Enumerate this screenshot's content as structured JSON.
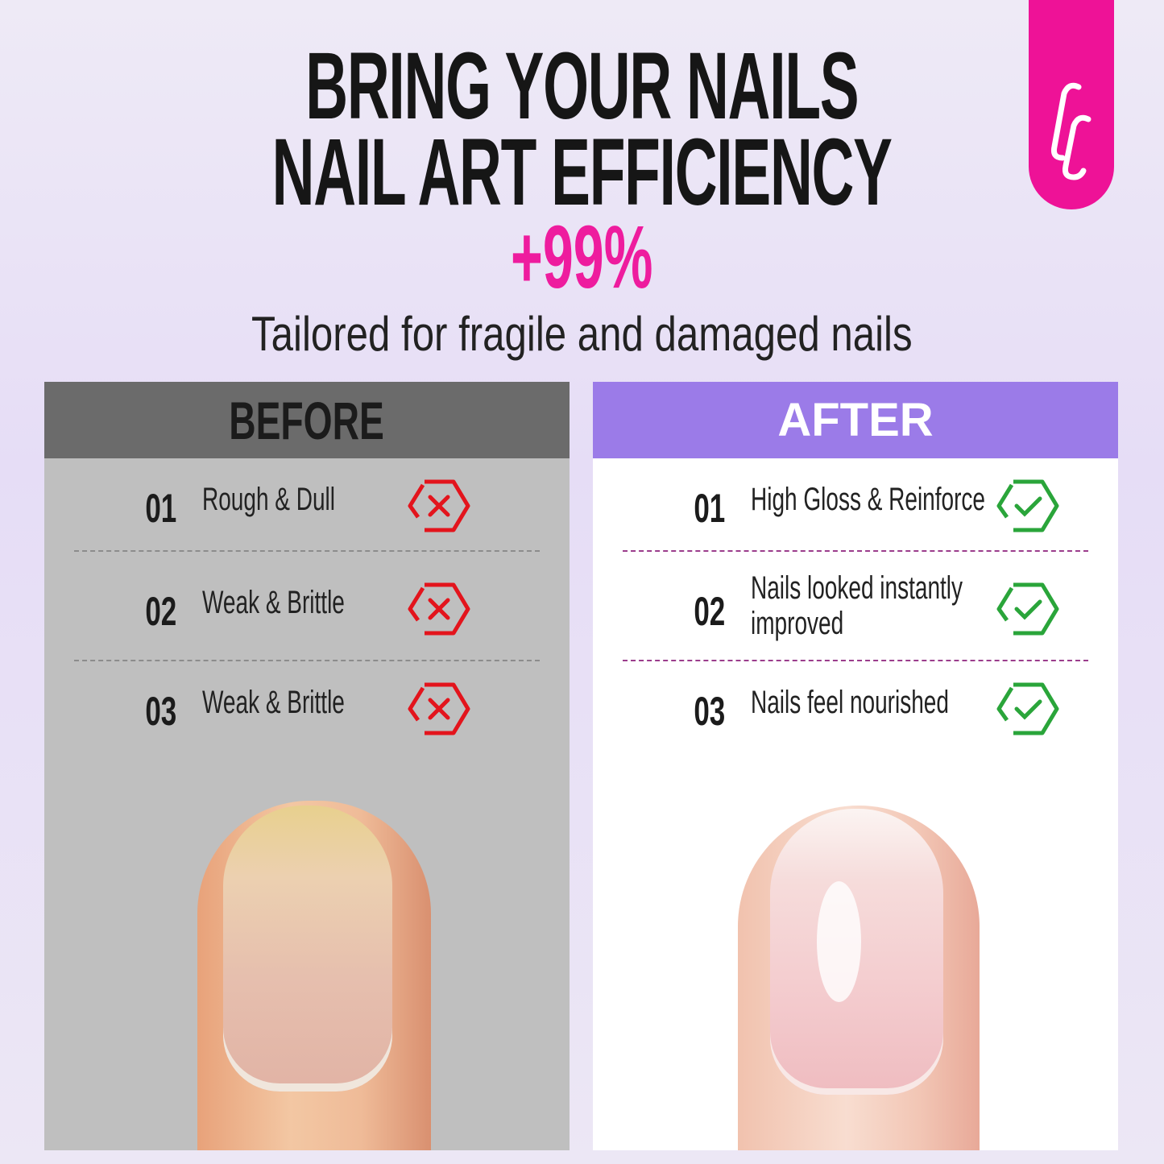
{
  "headline": {
    "line1": "BRING YOUR NAILS",
    "line2": "NAIL ART EFFICIENCY",
    "highlight": "+99%",
    "subtitle": "Tailored for fragile and damaged nails"
  },
  "logo": {
    "text": "CC",
    "color": "#ee1297"
  },
  "before": {
    "title": "BEFORE",
    "icon": "x-hexagon-icon",
    "icon_color": "#e3141c",
    "items": [
      {
        "num": "01",
        "label": "Rough & Dull"
      },
      {
        "num": "02",
        "label": "Weak & Brittle"
      },
      {
        "num": "03",
        "label": "Weak & Brittle"
      }
    ]
  },
  "after": {
    "title": "AFTER",
    "icon": "check-hexagon-icon",
    "icon_color": "#2aa53a",
    "header_color": "#9b7be8",
    "items": [
      {
        "num": "01",
        "label": "High Gloss & Reinforce"
      },
      {
        "num": "02",
        "label": "Nails looked instantly",
        "label2": "improved"
      },
      {
        "num": "03",
        "label": "Nails feel nourished"
      }
    ]
  },
  "accent": "#ee1c9e"
}
